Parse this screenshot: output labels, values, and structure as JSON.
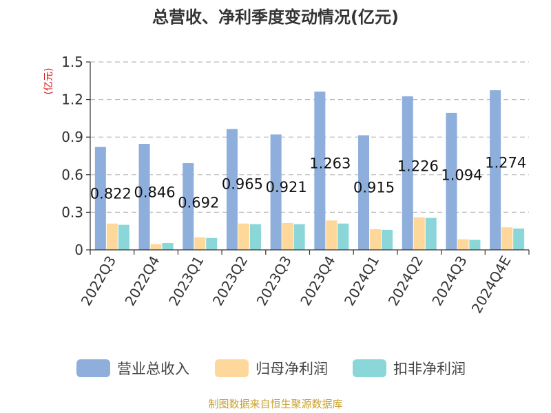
{
  "chart_data": {
    "type": "bar",
    "title": "总营收、净利季度变动情况(亿元)",
    "unit_label": "(亿元)",
    "categories": [
      "2022Q3",
      "2022Q4",
      "2023Q1",
      "2023Q2",
      "2023Q3",
      "2023Q4",
      "2024Q1",
      "2024Q2",
      "2024Q3",
      "2024Q4E"
    ],
    "ylim": [
      0,
      1.5
    ],
    "yticks": [
      "0",
      "0.3",
      "0.6",
      "0.9",
      "1.2",
      "1.5"
    ],
    "grid": true,
    "legend_position": "bottom",
    "series": [
      {
        "name": "营业总收入",
        "color": "#8eaedc",
        "values": [
          0.822,
          0.846,
          0.692,
          0.965,
          0.921,
          1.263,
          0.915,
          1.226,
          1.094,
          1.274
        ],
        "labels": [
          "0.822",
          "0.846",
          "0.692",
          "0.965",
          "0.921",
          "1.263",
          "0.915",
          "1.226",
          "1.094",
          "1.274"
        ]
      },
      {
        "name": "归母净利润",
        "color": "#fdd89a",
        "values": [
          0.21,
          0.045,
          0.1,
          0.21,
          0.215,
          0.235,
          0.165,
          0.26,
          0.085,
          0.18
        ]
      },
      {
        "name": "扣非净利润",
        "color": "#8ad6d8",
        "values": [
          0.2,
          0.055,
          0.095,
          0.205,
          0.205,
          0.21,
          0.16,
          0.255,
          0.08,
          0.17
        ]
      }
    ]
  },
  "source": "制图数据来自恒生聚源数据库"
}
